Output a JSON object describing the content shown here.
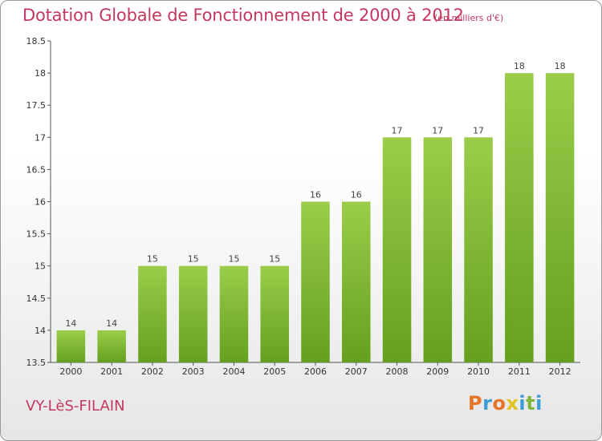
{
  "header": {
    "title": "Dotation Globale de Fonctionnement de 2000 à 2012",
    "subtitle": "(en milliers d'€)"
  },
  "footer": {
    "commune": "VY-LèS-FILAIN",
    "logo_letters": [
      "P",
      "r",
      "o",
      "x",
      "i",
      "t",
      "i"
    ],
    "logo_colors": [
      "#e8742a",
      "#3d9bd6",
      "#e8742a",
      "#e0c21f",
      "#3d9bd6",
      "#7ab63a",
      "#3d9bd6"
    ]
  },
  "chart_data": {
    "type": "bar",
    "title": "Dotation Globale de Fonctionnement de 2000 à 2012",
    "subtitle": "(en milliers d'€)",
    "categories": [
      "2000",
      "2001",
      "2002",
      "2003",
      "2004",
      "2005",
      "2006",
      "2007",
      "2008",
      "2009",
      "2010",
      "2011",
      "2012"
    ],
    "values": [
      14,
      14,
      15,
      15,
      15,
      15,
      16,
      16,
      17,
      17,
      17,
      18,
      18
    ],
    "value_labels": [
      "14",
      "14",
      "15",
      "15",
      "15",
      "15",
      "16",
      "16",
      "17",
      "17",
      "17",
      "18",
      "18"
    ],
    "ylim": [
      13.5,
      18.5
    ],
    "yticks": [
      13.5,
      14,
      14.5,
      15,
      15.5,
      16,
      16.5,
      17,
      17.5,
      18,
      18.5
    ],
    "ytick_labels": [
      "13.5",
      "14",
      "14.5",
      "15",
      "15.5",
      "16",
      "16.5",
      "17",
      "17.5",
      "18",
      "18.5"
    ],
    "grid": false,
    "bar_color_top": "#9acd4a",
    "bar_color_bottom": "#64a01e",
    "xlabel": "",
    "ylabel": ""
  }
}
